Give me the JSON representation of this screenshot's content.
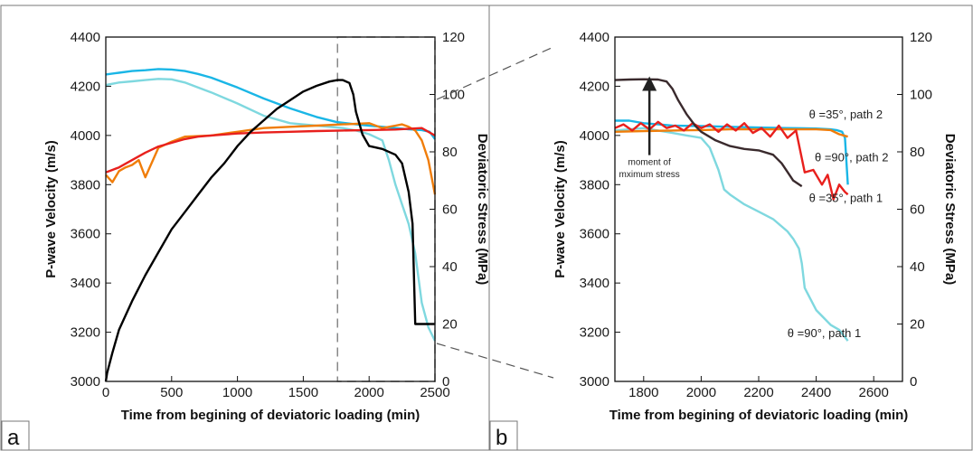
{
  "chart_data": [
    {
      "panel": "a",
      "type": "line",
      "xlabel": "Time from begining of deviatoric loading (min)",
      "ylabel_left": "P-wave Velocity (m/s)",
      "ylabel_right": "Deviatoric Stress (MPa)",
      "xlim": [
        0,
        2500
      ],
      "ylim_left": [
        3000,
        4400
      ],
      "ylim_right": [
        0,
        120
      ],
      "xticks": [
        "0",
        "500",
        "1000",
        "1500",
        "2000",
        "2500"
      ],
      "yticks_left": [
        "3000",
        "3200",
        "3400",
        "3600",
        "3800",
        "4000",
        "4200",
        "4400"
      ],
      "yticks_right": [
        "0",
        "20",
        "40",
        "60",
        "80",
        "100",
        "120"
      ],
      "zoom_box": {
        "x_start": 1760,
        "x_end": 2500
      },
      "series": [
        {
          "color": "#1ab6e6",
          "axis": "left",
          "x": [
            0,
            100,
            200,
            300,
            400,
            500,
            600,
            700,
            800,
            1000,
            1200,
            1400,
            1600,
            1750,
            1900,
            2000,
            2100,
            2200,
            2300,
            2400,
            2460,
            2500
          ],
          "y": [
            4248,
            4255,
            4262,
            4265,
            4270,
            4268,
            4262,
            4250,
            4235,
            4195,
            4150,
            4110,
            4075,
            4055,
            4045,
            4040,
            4035,
            4030,
            4025,
            4022,
            4015,
            3985
          ]
        },
        {
          "color": "#7fd8df",
          "axis": "left",
          "x": [
            0,
            100,
            200,
            300,
            400,
            500,
            600,
            700,
            800,
            1000,
            1200,
            1400,
            1600,
            1800,
            1900,
            2000,
            2100,
            2150,
            2200,
            2250,
            2300,
            2350,
            2400,
            2450,
            2500
          ],
          "y": [
            4205,
            4215,
            4220,
            4225,
            4230,
            4228,
            4215,
            4195,
            4175,
            4130,
            4080,
            4050,
            4040,
            4030,
            4020,
            4005,
            3980,
            3900,
            3800,
            3720,
            3640,
            3520,
            3320,
            3220,
            3165
          ]
        },
        {
          "color": "#f07d0a",
          "axis": "left",
          "x": [
            0,
            50,
            100,
            150,
            200,
            250,
            300,
            400,
            500,
            600,
            800,
            1000,
            1200,
            1400,
            1600,
            1800,
            2000,
            2100,
            2200,
            2250,
            2300,
            2350,
            2400,
            2450,
            2500
          ],
          "y": [
            3840,
            3810,
            3855,
            3870,
            3880,
            3900,
            3830,
            3950,
            3975,
            3995,
            4000,
            4015,
            4030,
            4035,
            4040,
            4045,
            4050,
            4030,
            4040,
            4045,
            4035,
            4020,
            3980,
            3900,
            3760
          ]
        },
        {
          "color": "#e8201d",
          "axis": "left",
          "x": [
            0,
            50,
            100,
            200,
            300,
            400,
            500,
            600,
            700,
            800,
            1000,
            1200,
            1400,
            1600,
            1800,
            2000,
            2200,
            2400,
            2500
          ],
          "y": [
            3850,
            3860,
            3870,
            3900,
            3930,
            3955,
            3970,
            3985,
            3995,
            4000,
            4008,
            4012,
            4015,
            4018,
            4020,
            4022,
            4024,
            4030,
            4000
          ]
        },
        {
          "color": "#000000",
          "axis": "right",
          "x": [
            0,
            10,
            50,
            100,
            200,
            300,
            400,
            500,
            600,
            700,
            800,
            900,
            1000,
            1100,
            1200,
            1300,
            1400,
            1500,
            1600,
            1700,
            1760,
            1800,
            1850,
            1880,
            1900,
            1950,
            2000,
            2100,
            2200,
            2250,
            2300,
            2330,
            2350,
            2350,
            2500
          ],
          "y": [
            0,
            3,
            10,
            18,
            28,
            37,
            45,
            53,
            59,
            65,
            71,
            76,
            82,
            87,
            91,
            95,
            98,
            101,
            103,
            104.5,
            105,
            105,
            104,
            100,
            94,
            86,
            82,
            81,
            79,
            76,
            66,
            55,
            20,
            20,
            20
          ]
        }
      ]
    },
    {
      "panel": "b",
      "type": "line",
      "xlabel": "Time from begining of deviatoric loading (min)",
      "ylabel_left": "P-wave Velocity (m/s)",
      "ylabel_right": "Deviatoric Stress (MPa)",
      "xlim": [
        1700,
        2700
      ],
      "ylim_left": [
        3000,
        4400
      ],
      "ylim_right": [
        0,
        120
      ],
      "xticks": [
        "1800",
        "2000",
        "2200",
        "2400",
        "2600"
      ],
      "yticks_left": [
        "3000",
        "3200",
        "3400",
        "3600",
        "3800",
        "4000",
        "4200",
        "4400"
      ],
      "yticks_right": [
        "0",
        "20",
        "40",
        "60",
        "80",
        "100",
        "120"
      ],
      "annotations": [
        {
          "text": "moment of",
          "x": 1820,
          "y": 3880
        },
        {
          "text": "mximum stress",
          "x": 1820,
          "y": 3830
        },
        {
          "text": "θ =35°, path 2",
          "x": 2375,
          "y": 4070
        },
        {
          "text": "θ =90°, path 2",
          "x": 2395,
          "y": 3895
        },
        {
          "text": "θ =35°, path 1",
          "x": 2375,
          "y": 3730
        },
        {
          "text": "θ =90°, path 1",
          "x": 2300,
          "y": 3180
        }
      ],
      "arrow": {
        "x": 1820,
        "y_from": 3920,
        "y_to": 4240
      },
      "series": [
        {
          "color": "#1ab6e6",
          "axis": "left",
          "x": [
            1700,
            1750,
            1800,
            1850,
            1900,
            2000,
            2100,
            2200,
            2300,
            2400,
            2450,
            2470,
            2490,
            2500,
            2510
          ],
          "y": [
            4060,
            4060,
            4050,
            4045,
            4040,
            4038,
            4035,
            4032,
            4030,
            4028,
            4025,
            4022,
            4015,
            3990,
            3800
          ]
        },
        {
          "color": "#7fd8df",
          "axis": "left",
          "x": [
            1700,
            1750,
            1800,
            1850,
            1900,
            1950,
            2000,
            2030,
            2060,
            2080,
            2100,
            2150,
            2200,
            2250,
            2300,
            2320,
            2340,
            2350,
            2360,
            2400,
            2450,
            2480,
            2510
          ],
          "y": [
            4020,
            4025,
            4030,
            4020,
            4010,
            4000,
            3990,
            3950,
            3860,
            3780,
            3760,
            3720,
            3690,
            3660,
            3610,
            3580,
            3540,
            3480,
            3380,
            3290,
            3230,
            3210,
            3165
          ]
        },
        {
          "color": "#f07d0a",
          "axis": "left",
          "x": [
            1700,
            1800,
            1900,
            2000,
            2100,
            2200,
            2300,
            2400,
            2450,
            2480,
            2510
          ],
          "y": [
            4015,
            4018,
            4020,
            4022,
            4025,
            4025,
            4025,
            4025,
            4022,
            4005,
            3995
          ]
        },
        {
          "color": "#e8201d",
          "axis": "left",
          "x": [
            1700,
            1730,
            1760,
            1790,
            1820,
            1850,
            1880,
            1910,
            1940,
            1970,
            2000,
            2030,
            2060,
            2090,
            2120,
            2150,
            2180,
            2210,
            2240,
            2270,
            2300,
            2330,
            2360,
            2390,
            2420,
            2440,
            2460,
            2480,
            2500,
            2510
          ],
          "y": [
            4030,
            4045,
            4020,
            4050,
            4025,
            4055,
            4030,
            4040,
            4020,
            4050,
            4030,
            4045,
            4015,
            4045,
            4020,
            4050,
            4010,
            4030,
            3995,
            4040,
            3990,
            4020,
            3850,
            3860,
            3800,
            3840,
            3740,
            3800,
            3770,
            3760
          ]
        },
        {
          "color": "#3a2a2d",
          "axis": "right",
          "x": [
            1700,
            1750,
            1800,
            1850,
            1880,
            1900,
            1920,
            1950,
            1980,
            2000,
            2050,
            2100,
            2150,
            2200,
            2250,
            2280,
            2300,
            2320,
            2350
          ],
          "y": [
            105,
            105.2,
            105.3,
            105.2,
            104.5,
            102,
            98,
            93,
            89,
            87,
            84,
            82,
            81,
            80.5,
            79,
            76,
            73,
            70,
            68
          ]
        }
      ]
    }
  ],
  "labels": {
    "panel_a": "a",
    "panel_b": "b"
  }
}
